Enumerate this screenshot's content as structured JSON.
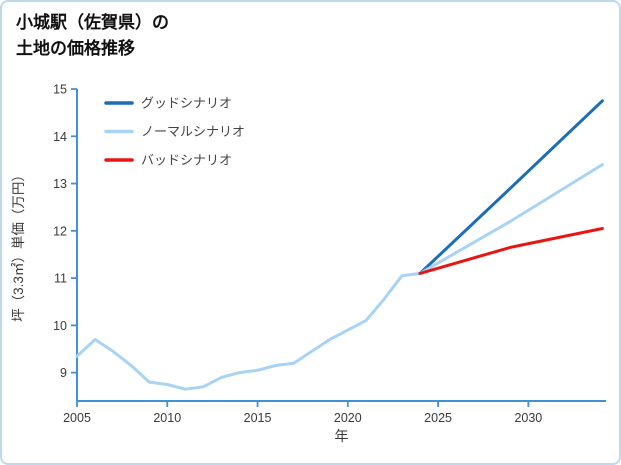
{
  "header": {
    "title_line1": "小城駅（佐賀県）の",
    "title_line2": "土地の価格推移"
  },
  "chart_data": {
    "type": "line",
    "title": "小城駅（佐賀県）の土地の価格推移",
    "xlabel": "年",
    "ylabel": "坪（3.3㎡）単価（万円）",
    "xlim": [
      2005,
      2034.3
    ],
    "ylim": [
      8.4,
      15
    ],
    "xticks": [
      2005,
      2010,
      2015,
      2020,
      2025,
      2030
    ],
    "yticks": [
      9,
      10,
      11,
      12,
      13,
      14,
      15
    ],
    "grid": false,
    "axis_color": "#4191d6",
    "tick_label_color": "#3a3a3a",
    "legend": {
      "position": "upper-left",
      "entries": [
        {
          "label": "グッドシナリオ",
          "color": "#1b6db5"
        },
        {
          "label": "ノーマルシナリオ",
          "color": "#a8d3f5"
        },
        {
          "label": "バッドシナリオ",
          "color": "#e81612"
        }
      ]
    },
    "series": [
      {
        "id": "history",
        "in_legend": false,
        "color": "#a8d3f5",
        "line_width": 3,
        "x": [
          2005,
          2006,
          2007,
          2008,
          2009,
          2010,
          2011,
          2012,
          2013,
          2014,
          2015,
          2016,
          2017,
          2018,
          2019,
          2020,
          2021,
          2022,
          2023,
          2024
        ],
        "y": [
          9.35,
          9.7,
          9.45,
          9.15,
          8.8,
          8.75,
          8.65,
          8.7,
          8.9,
          9.0,
          9.05,
          9.15,
          9.2,
          9.45,
          9.7,
          9.9,
          10.1,
          10.55,
          11.05,
          11.1
        ]
      },
      {
        "id": "good-scenario",
        "name": "グッドシナリオ",
        "in_legend": true,
        "color": "#1b6db5",
        "line_width": 3,
        "x": [
          2024,
          2029,
          2034.1
        ],
        "y": [
          11.1,
          12.9,
          14.75
        ]
      },
      {
        "id": "normal-scenario",
        "name": "ノーマルシナリオ",
        "in_legend": true,
        "color": "#a8d3f5",
        "line_width": 3,
        "x": [
          2024,
          2029,
          2034.1
        ],
        "y": [
          11.1,
          12.2,
          13.4
        ]
      },
      {
        "id": "bad-scenario",
        "name": "バッドシナリオ",
        "in_legend": true,
        "color": "#e81612",
        "line_width": 3,
        "x": [
          2024,
          2029,
          2034.1
        ],
        "y": [
          11.1,
          11.65,
          12.05
        ]
      }
    ]
  }
}
